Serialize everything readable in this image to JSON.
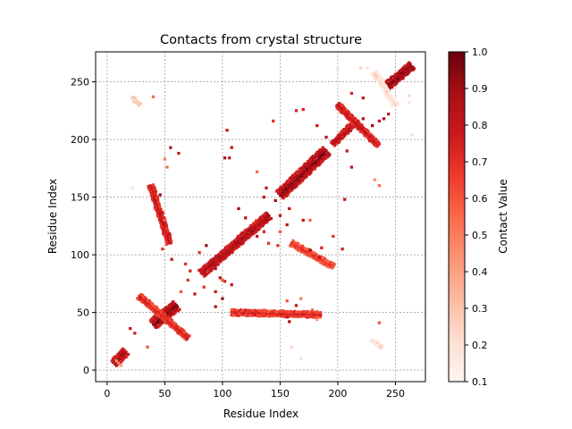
{
  "chart_data": {
    "type": "scatter",
    "title": "Contacts from crystal structure",
    "xlabel": "Residue Index",
    "ylabel": "Residue Index",
    "xlim": [
      -10,
      276
    ],
    "ylim": [
      -10,
      276
    ],
    "xticks": [
      0,
      50,
      100,
      150,
      200,
      250
    ],
    "yticks": [
      0,
      50,
      100,
      150,
      200,
      250
    ],
    "grid": true,
    "grid_style": "dashed",
    "marker": "square",
    "colormap": "Reds",
    "colorbar": {
      "label": "Contact Value",
      "range": [
        0.1,
        1.0
      ],
      "ticks": [
        "0.1",
        "0.2",
        "0.3",
        "0.4",
        "0.5",
        "0.6",
        "0.7",
        "0.8",
        "0.9",
        "1.0"
      ]
    },
    "colors": {
      "low": "#fff5f0",
      "mid": "#fb6a4a",
      "high": "#67000d",
      "grid": "#808080"
    },
    "clusters": [
      {
        "name": "diagonal-1",
        "x0": 6,
        "y0": 6,
        "x1": 16,
        "y1": 16,
        "width": 3,
        "value": 0.95
      },
      {
        "name": "diagonal-2",
        "x0": 40,
        "y0": 40,
        "x1": 60,
        "y1": 56,
        "width": 4,
        "value": 1.0
      },
      {
        "name": "diagonal-3",
        "x0": 82,
        "y0": 84,
        "x1": 140,
        "y1": 134,
        "width": 3,
        "value": 0.95
      },
      {
        "name": "diagonal-4",
        "x0": 150,
        "y0": 152,
        "x1": 190,
        "y1": 190,
        "width": 4,
        "value": 1.0
      },
      {
        "name": "diagonal-5",
        "x0": 196,
        "y0": 196,
        "x1": 215,
        "y1": 215,
        "width": 2,
        "value": 0.9
      },
      {
        "name": "diagonal-6",
        "x0": 240,
        "y0": 244,
        "x1": 264,
        "y1": 264,
        "width": 3,
        "value": 1.0
      },
      {
        "name": "band-upper",
        "x0": 200,
        "y0": 230,
        "x1": 235,
        "y1": 195,
        "width": 2,
        "value": 0.85
      },
      {
        "name": "band-lower",
        "x0": 28,
        "y0": 64,
        "x1": 70,
        "y1": 28,
        "width": 2,
        "value": 0.8
      },
      {
        "name": "arm-left",
        "x0": 38,
        "y0": 160,
        "x1": 54,
        "y1": 110,
        "width": 2,
        "value": 0.85
      },
      {
        "name": "arm-bottom",
        "x0": 108,
        "y0": 50,
        "x1": 185,
        "y1": 48,
        "width": 2,
        "value": 0.8
      },
      {
        "name": "arm-right",
        "x0": 160,
        "y0": 110,
        "x1": 196,
        "y1": 90,
        "width": 2,
        "value": 0.75
      },
      {
        "name": "pale-top-right",
        "x0": 232,
        "y0": 258,
        "x1": 250,
        "y1": 230,
        "width": 2,
        "value": 0.3
      },
      {
        "name": "pale-bottom-right",
        "x0": 230,
        "y0": 26,
        "x1": 238,
        "y1": 20,
        "width": 1,
        "value": 0.3
      },
      {
        "name": "pale-top-left",
        "x0": 22,
        "y0": 236,
        "x1": 28,
        "y1": 230,
        "width": 1,
        "value": 0.35
      }
    ],
    "points": [
      {
        "x": 10,
        "y": 6,
        "v": 0.5
      },
      {
        "x": 12,
        "y": 4,
        "v": 0.4
      },
      {
        "x": 8,
        "y": 8,
        "v": 0.45
      },
      {
        "x": 20,
        "y": 36,
        "v": 0.8
      },
      {
        "x": 24,
        "y": 32,
        "v": 0.75
      },
      {
        "x": 35,
        "y": 20,
        "v": 0.6
      },
      {
        "x": 40,
        "y": 237,
        "v": 0.55
      },
      {
        "x": 22,
        "y": 158,
        "v": 0.2
      },
      {
        "x": 55,
        "y": 193,
        "v": 0.85
      },
      {
        "x": 62,
        "y": 188,
        "v": 0.8
      },
      {
        "x": 50,
        "y": 183,
        "v": 0.5
      },
      {
        "x": 52,
        "y": 176,
        "v": 0.55
      },
      {
        "x": 46,
        "y": 152,
        "v": 0.9
      },
      {
        "x": 44,
        "y": 148,
        "v": 0.7
      },
      {
        "x": 50,
        "y": 130,
        "v": 0.6
      },
      {
        "x": 54,
        "y": 118,
        "v": 0.8
      },
      {
        "x": 48,
        "y": 105,
        "v": 0.7
      },
      {
        "x": 56,
        "y": 96,
        "v": 0.8
      },
      {
        "x": 68,
        "y": 92,
        "v": 0.7
      },
      {
        "x": 72,
        "y": 86,
        "v": 0.75
      },
      {
        "x": 70,
        "y": 78,
        "v": 0.7
      },
      {
        "x": 64,
        "y": 68,
        "v": 0.6
      },
      {
        "x": 76,
        "y": 66,
        "v": 0.8
      },
      {
        "x": 84,
        "y": 72,
        "v": 0.7
      },
      {
        "x": 94,
        "y": 68,
        "v": 0.8
      },
      {
        "x": 100,
        "y": 62,
        "v": 0.9
      },
      {
        "x": 94,
        "y": 55,
        "v": 0.85
      },
      {
        "x": 86,
        "y": 108,
        "v": 0.9
      },
      {
        "x": 80,
        "y": 102,
        "v": 0.7
      },
      {
        "x": 98,
        "y": 80,
        "v": 0.85
      },
      {
        "x": 102,
        "y": 77,
        "v": 0.75
      },
      {
        "x": 108,
        "y": 74,
        "v": 0.8
      },
      {
        "x": 104,
        "y": 208,
        "v": 0.8
      },
      {
        "x": 102,
        "y": 184,
        "v": 0.85
      },
      {
        "x": 106,
        "y": 184,
        "v": 0.8
      },
      {
        "x": 108,
        "y": 193,
        "v": 0.8
      },
      {
        "x": 114,
        "y": 140,
        "v": 0.9
      },
      {
        "x": 120,
        "y": 132,
        "v": 0.85
      },
      {
        "x": 130,
        "y": 116,
        "v": 0.8
      },
      {
        "x": 136,
        "y": 120,
        "v": 0.75
      },
      {
        "x": 140,
        "y": 110,
        "v": 0.7
      },
      {
        "x": 130,
        "y": 172,
        "v": 0.55
      },
      {
        "x": 138,
        "y": 158,
        "v": 0.8
      },
      {
        "x": 136,
        "y": 150,
        "v": 0.85
      },
      {
        "x": 146,
        "y": 147,
        "v": 0.9
      },
      {
        "x": 150,
        "y": 134,
        "v": 0.8
      },
      {
        "x": 156,
        "y": 126,
        "v": 0.85
      },
      {
        "x": 150,
        "y": 120,
        "v": 0.6
      },
      {
        "x": 148,
        "y": 108,
        "v": 0.7
      },
      {
        "x": 144,
        "y": 216,
        "v": 0.7
      },
      {
        "x": 164,
        "y": 225,
        "v": 0.75
      },
      {
        "x": 170,
        "y": 226,
        "v": 0.75
      },
      {
        "x": 182,
        "y": 212,
        "v": 0.8
      },
      {
        "x": 190,
        "y": 202,
        "v": 0.8
      },
      {
        "x": 170,
        "y": 130,
        "v": 0.8
      },
      {
        "x": 176,
        "y": 130,
        "v": 0.55
      },
      {
        "x": 186,
        "y": 106,
        "v": 0.75
      },
      {
        "x": 184,
        "y": 98,
        "v": 0.8
      },
      {
        "x": 196,
        "y": 116,
        "v": 0.7
      },
      {
        "x": 204,
        "y": 105,
        "v": 0.75
      },
      {
        "x": 206,
        "y": 148,
        "v": 0.8
      },
      {
        "x": 222,
        "y": 236,
        "v": 0.8
      },
      {
        "x": 212,
        "y": 240,
        "v": 0.75
      },
      {
        "x": 208,
        "y": 190,
        "v": 0.8
      },
      {
        "x": 212,
        "y": 176,
        "v": 0.8
      },
      {
        "x": 222,
        "y": 218,
        "v": 0.85
      },
      {
        "x": 230,
        "y": 212,
        "v": 0.9
      },
      {
        "x": 236,
        "y": 216,
        "v": 0.8
      },
      {
        "x": 240,
        "y": 218,
        "v": 0.85
      },
      {
        "x": 244,
        "y": 222,
        "v": 0.8
      },
      {
        "x": 232,
        "y": 165,
        "v": 0.45
      },
      {
        "x": 236,
        "y": 160,
        "v": 0.55
      },
      {
        "x": 236,
        "y": 41,
        "v": 0.6
      },
      {
        "x": 200,
        "y": 262,
        "v": 0.2
      },
      {
        "x": 220,
        "y": 262,
        "v": 0.25
      },
      {
        "x": 226,
        "y": 262,
        "v": 0.2
      },
      {
        "x": 262,
        "y": 232,
        "v": 0.2
      },
      {
        "x": 264,
        "y": 204,
        "v": 0.2
      },
      {
        "x": 262,
        "y": 238,
        "v": 0.25
      },
      {
        "x": 160,
        "y": 20,
        "v": 0.25
      },
      {
        "x": 168,
        "y": 10,
        "v": 0.2
      },
      {
        "x": 182,
        "y": 44,
        "v": 0.45
      },
      {
        "x": 178,
        "y": 52,
        "v": 0.6
      },
      {
        "x": 168,
        "y": 62,
        "v": 0.5
      },
      {
        "x": 156,
        "y": 60,
        "v": 0.6
      },
      {
        "x": 100,
        "y": 78,
        "v": 0.6
      },
      {
        "x": 94,
        "y": 88,
        "v": 0.85
      },
      {
        "x": 120,
        "y": 52,
        "v": 0.75
      },
      {
        "x": 128,
        "y": 48,
        "v": 0.8
      },
      {
        "x": 136,
        "y": 52,
        "v": 0.6
      },
      {
        "x": 156,
        "y": 46,
        "v": 0.8
      },
      {
        "x": 158,
        "y": 42,
        "v": 0.85
      },
      {
        "x": 164,
        "y": 56,
        "v": 0.8
      },
      {
        "x": 158,
        "y": 140,
        "v": 0.8
      },
      {
        "x": 176,
        "y": 104,
        "v": 0.9
      }
    ]
  }
}
